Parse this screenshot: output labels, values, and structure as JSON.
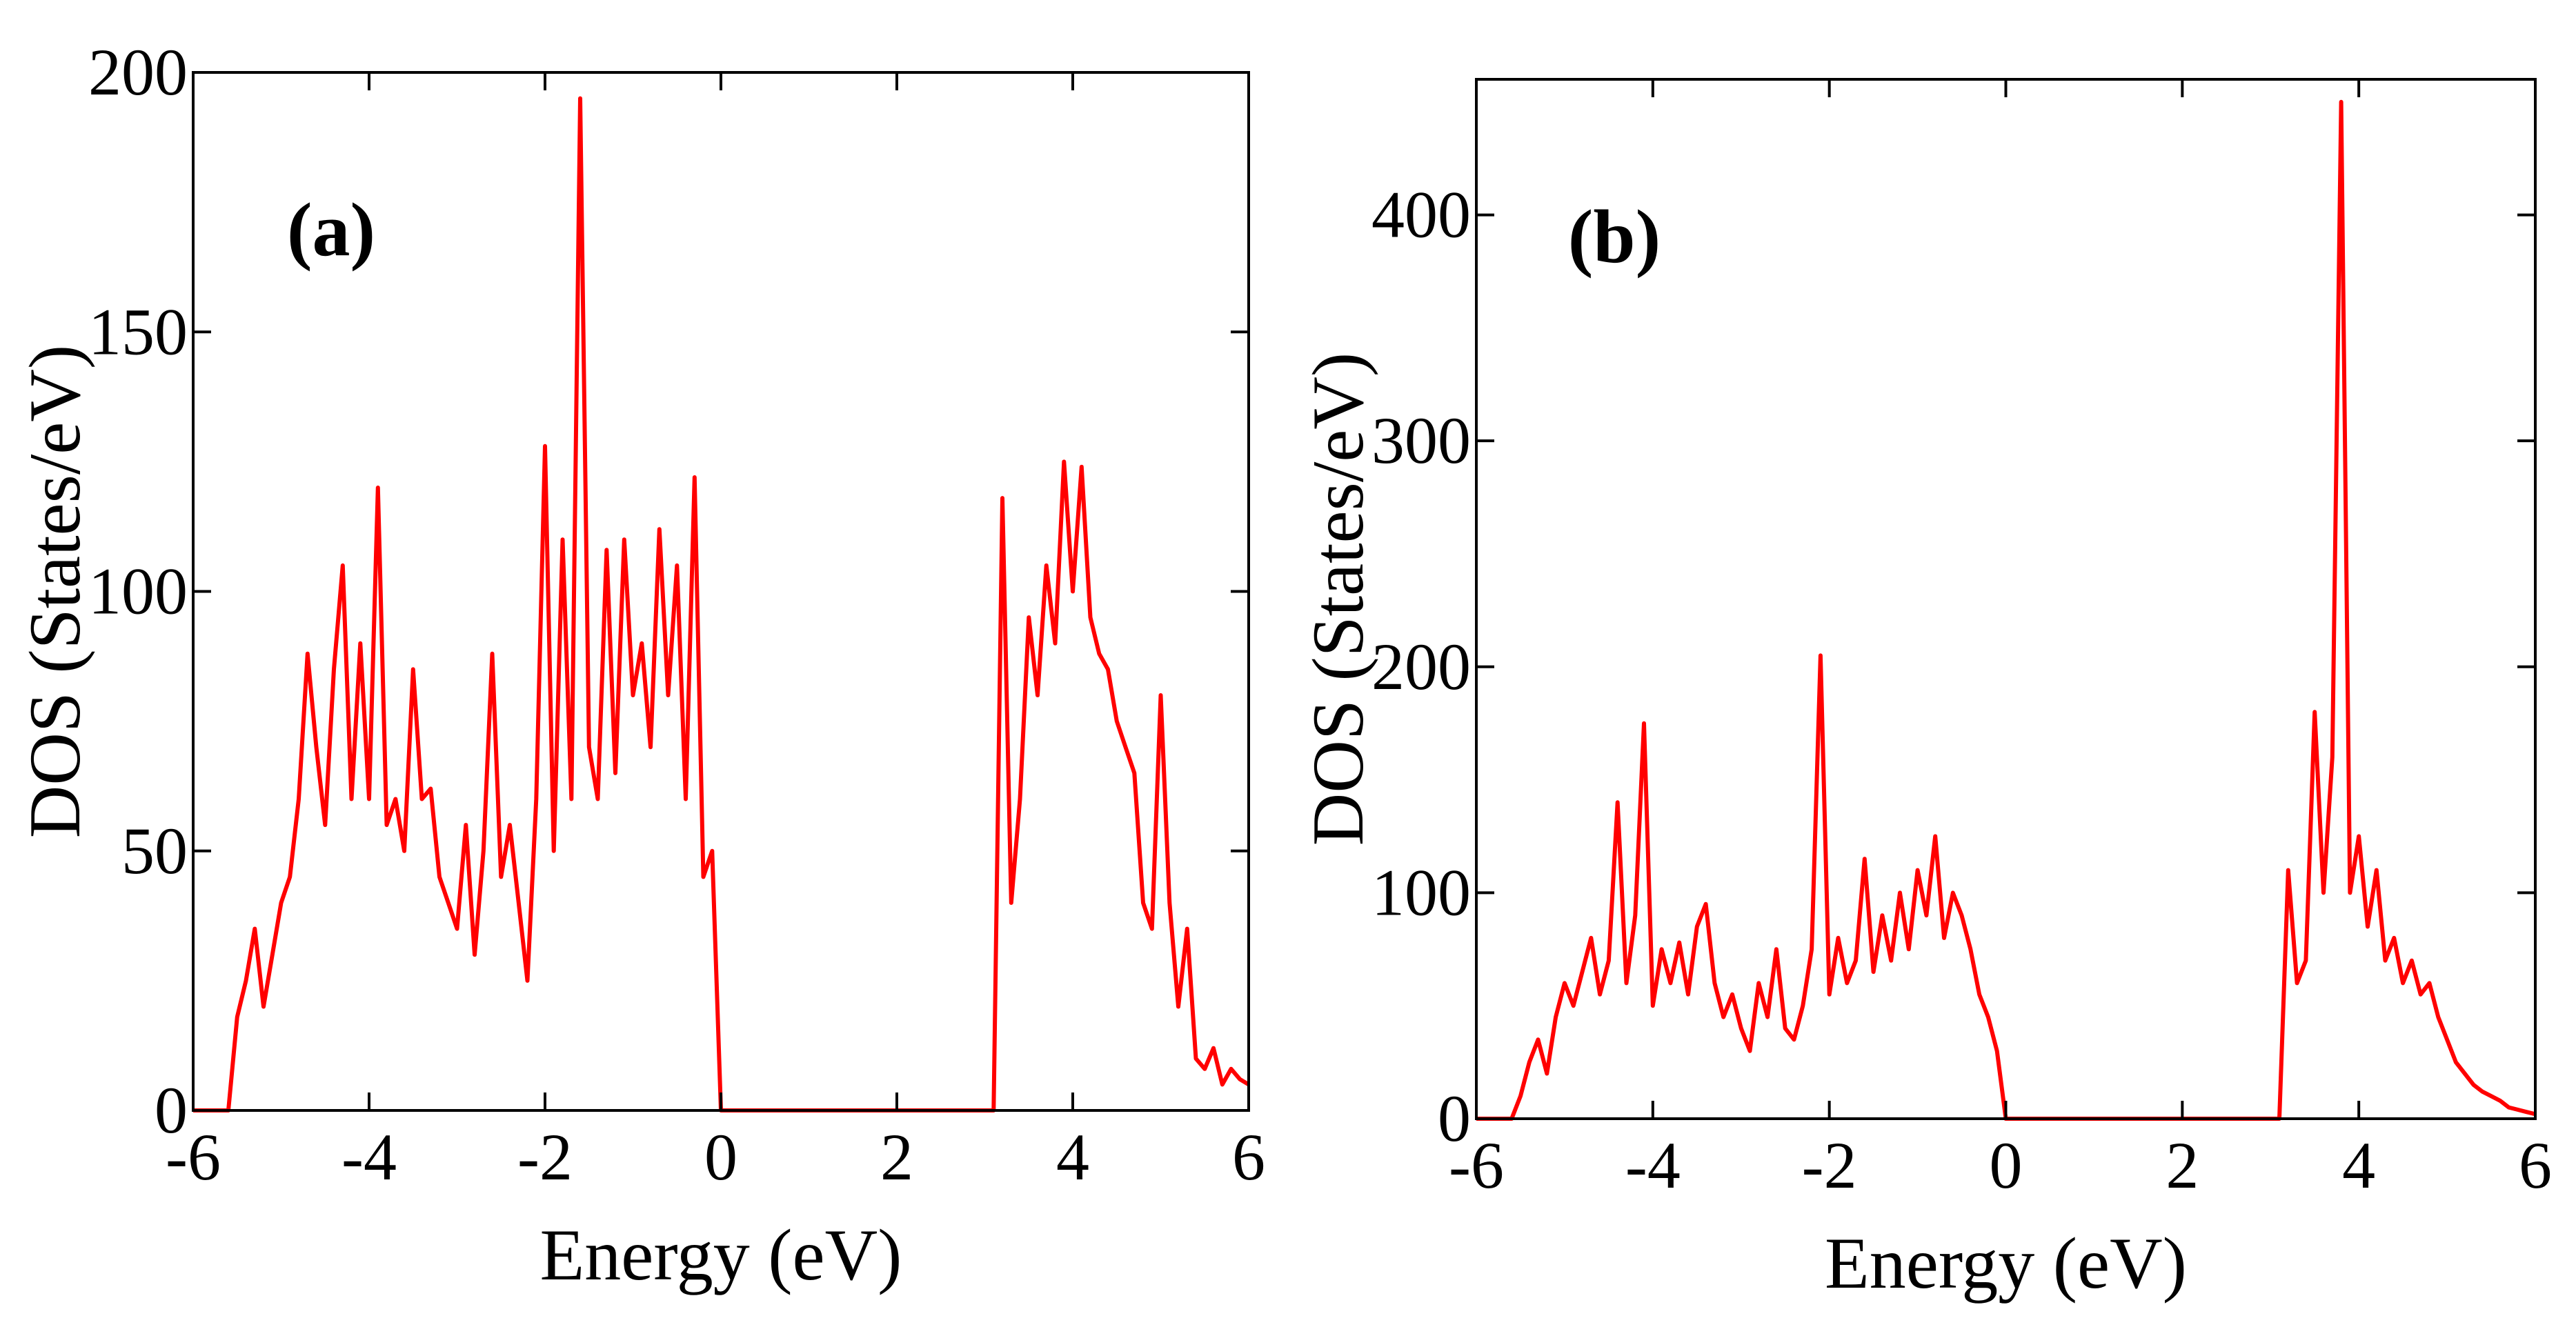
{
  "chart_data": [
    {
      "type": "line",
      "annotation": "(a)",
      "xlabel": "Energy (eV)",
      "ylabel": "DOS (States/eV)",
      "xlim": [
        -6,
        6
      ],
      "ylim": [
        0,
        200
      ],
      "xticks": [
        -6,
        -4,
        -2,
        0,
        2,
        4,
        6
      ],
      "yticks": [
        0,
        50,
        100,
        150,
        200
      ],
      "series": [
        {
          "color": "#ff0000",
          "x": [
            -6.0,
            -5.9,
            -5.8,
            -5.7,
            -5.6,
            -5.5,
            -5.4,
            -5.3,
            -5.2,
            -5.1,
            -5.0,
            -4.9,
            -4.8,
            -4.7,
            -4.6,
            -4.5,
            -4.4,
            -4.3,
            -4.2,
            -4.1,
            -4.0,
            -3.9,
            -3.8,
            -3.7,
            -3.6,
            -3.5,
            -3.4,
            -3.3,
            -3.2,
            -3.1,
            -3.0,
            -2.9,
            -2.8,
            -2.7,
            -2.6,
            -2.5,
            -2.4,
            -2.3,
            -2.2,
            -2.1,
            -2.0,
            -1.9,
            -1.8,
            -1.7,
            -1.6,
            -1.5,
            -1.4,
            -1.3,
            -1.2,
            -1.1,
            -1.0,
            -0.9,
            -0.8,
            -0.7,
            -0.6,
            -0.5,
            -0.4,
            -0.3,
            -0.2,
            -0.1,
            0.0,
            0.1,
            0.2,
            0.3,
            0.4,
            0.5,
            0.6,
            0.7,
            0.8,
            0.9,
            1.0,
            1.1,
            1.2,
            1.3,
            1.4,
            1.5,
            1.6,
            1.7,
            1.8,
            1.9,
            2.0,
            2.1,
            2.2,
            2.3,
            2.4,
            2.5,
            2.6,
            2.7,
            2.8,
            2.9,
            3.0,
            3.1,
            3.2,
            3.3,
            3.4,
            3.5,
            3.6,
            3.7,
            3.8,
            3.9,
            4.0,
            4.1,
            4.2,
            4.3,
            4.4,
            4.5,
            4.6,
            4.7,
            4.8,
            4.9,
            5.0,
            5.1,
            5.2,
            5.3,
            5.4,
            5.5,
            5.6,
            5.7,
            5.8,
            5.9,
            6.0
          ],
          "values": [
            0,
            0,
            0,
            0,
            0,
            18,
            25,
            35,
            20,
            30,
            40,
            45,
            60,
            88,
            70,
            55,
            85,
            105,
            60,
            90,
            60,
            120,
            55,
            60,
            50,
            85,
            60,
            62,
            45,
            40,
            35,
            55,
            30,
            50,
            88,
            45,
            55,
            40,
            25,
            60,
            128,
            50,
            110,
            60,
            195,
            70,
            60,
            108,
            65,
            110,
            80,
            90,
            70,
            112,
            80,
            105,
            60,
            122,
            45,
            50,
            0,
            0,
            0,
            0,
            0,
            0,
            0,
            0,
            0,
            0,
            0,
            0,
            0,
            0,
            0,
            0,
            0,
            0,
            0,
            0,
            0,
            0,
            0,
            0,
            0,
            0,
            0,
            0,
            0,
            0,
            0,
            0,
            118,
            40,
            60,
            95,
            80,
            105,
            90,
            125,
            100,
            124,
            95,
            88,
            85,
            75,
            70,
            65,
            40,
            35,
            80,
            40,
            20,
            35,
            10,
            8,
            12,
            5,
            8,
            6,
            5
          ]
        }
      ]
    },
    {
      "type": "line",
      "annotation": "(b)",
      "xlabel": "Energy (eV)",
      "ylabel": "DOS (States/eV)",
      "xlim": [
        -6,
        6
      ],
      "ylim": [
        0,
        460
      ],
      "xticks": [
        -6,
        -4,
        -2,
        0,
        2,
        4,
        6
      ],
      "yticks": [
        0,
        100,
        200,
        300,
        400
      ],
      "series": [
        {
          "color": "#ff0000",
          "x": [
            -6.0,
            -5.9,
            -5.8,
            -5.7,
            -5.6,
            -5.5,
            -5.4,
            -5.3,
            -5.2,
            -5.1,
            -5.0,
            -4.9,
            -4.8,
            -4.7,
            -4.6,
            -4.5,
            -4.4,
            -4.3,
            -4.2,
            -4.1,
            -4.0,
            -3.9,
            -3.8,
            -3.7,
            -3.6,
            -3.5,
            -3.4,
            -3.3,
            -3.2,
            -3.1,
            -3.0,
            -2.9,
            -2.8,
            -2.7,
            -2.6,
            -2.5,
            -2.4,
            -2.3,
            -2.2,
            -2.1,
            -2.0,
            -1.9,
            -1.8,
            -1.7,
            -1.6,
            -1.5,
            -1.4,
            -1.3,
            -1.2,
            -1.1,
            -1.0,
            -0.9,
            -0.8,
            -0.7,
            -0.6,
            -0.5,
            -0.4,
            -0.3,
            -0.2,
            -0.1,
            0.0,
            0.1,
            0.2,
            0.3,
            0.4,
            0.5,
            0.6,
            0.7,
            0.8,
            0.9,
            1.0,
            1.1,
            1.2,
            1.3,
            1.4,
            1.5,
            1.6,
            1.7,
            1.8,
            1.9,
            2.0,
            2.1,
            2.2,
            2.3,
            2.4,
            2.5,
            2.6,
            2.7,
            2.8,
            2.9,
            3.0,
            3.1,
            3.2,
            3.3,
            3.4,
            3.5,
            3.6,
            3.7,
            3.8,
            3.9,
            4.0,
            4.1,
            4.2,
            4.3,
            4.4,
            4.5,
            4.6,
            4.7,
            4.8,
            4.9,
            5.0,
            5.1,
            5.2,
            5.3,
            5.4,
            5.5,
            5.6,
            5.7,
            5.8,
            5.9,
            6.0
          ],
          "values": [
            0,
            0,
            0,
            0,
            0,
            10,
            25,
            35,
            20,
            45,
            60,
            50,
            65,
            80,
            55,
            70,
            140,
            60,
            90,
            175,
            50,
            75,
            60,
            78,
            55,
            85,
            95,
            60,
            45,
            55,
            40,
            30,
            60,
            45,
            75,
            40,
            35,
            50,
            75,
            205,
            55,
            80,
            60,
            70,
            115,
            65,
            90,
            70,
            100,
            75,
            110,
            90,
            125,
            80,
            100,
            90,
            75,
            55,
            45,
            30,
            0,
            0,
            0,
            0,
            0,
            0,
            0,
            0,
            0,
            0,
            0,
            0,
            0,
            0,
            0,
            0,
            0,
            0,
            0,
            0,
            0,
            0,
            0,
            0,
            0,
            0,
            0,
            0,
            0,
            0,
            0,
            0,
            110,
            60,
            70,
            180,
            100,
            160,
            450,
            100,
            125,
            85,
            110,
            70,
            80,
            60,
            70,
            55,
            60,
            45,
            35,
            25,
            20,
            15,
            12,
            10,
            8,
            5,
            4,
            3,
            2
          ]
        }
      ]
    }
  ]
}
